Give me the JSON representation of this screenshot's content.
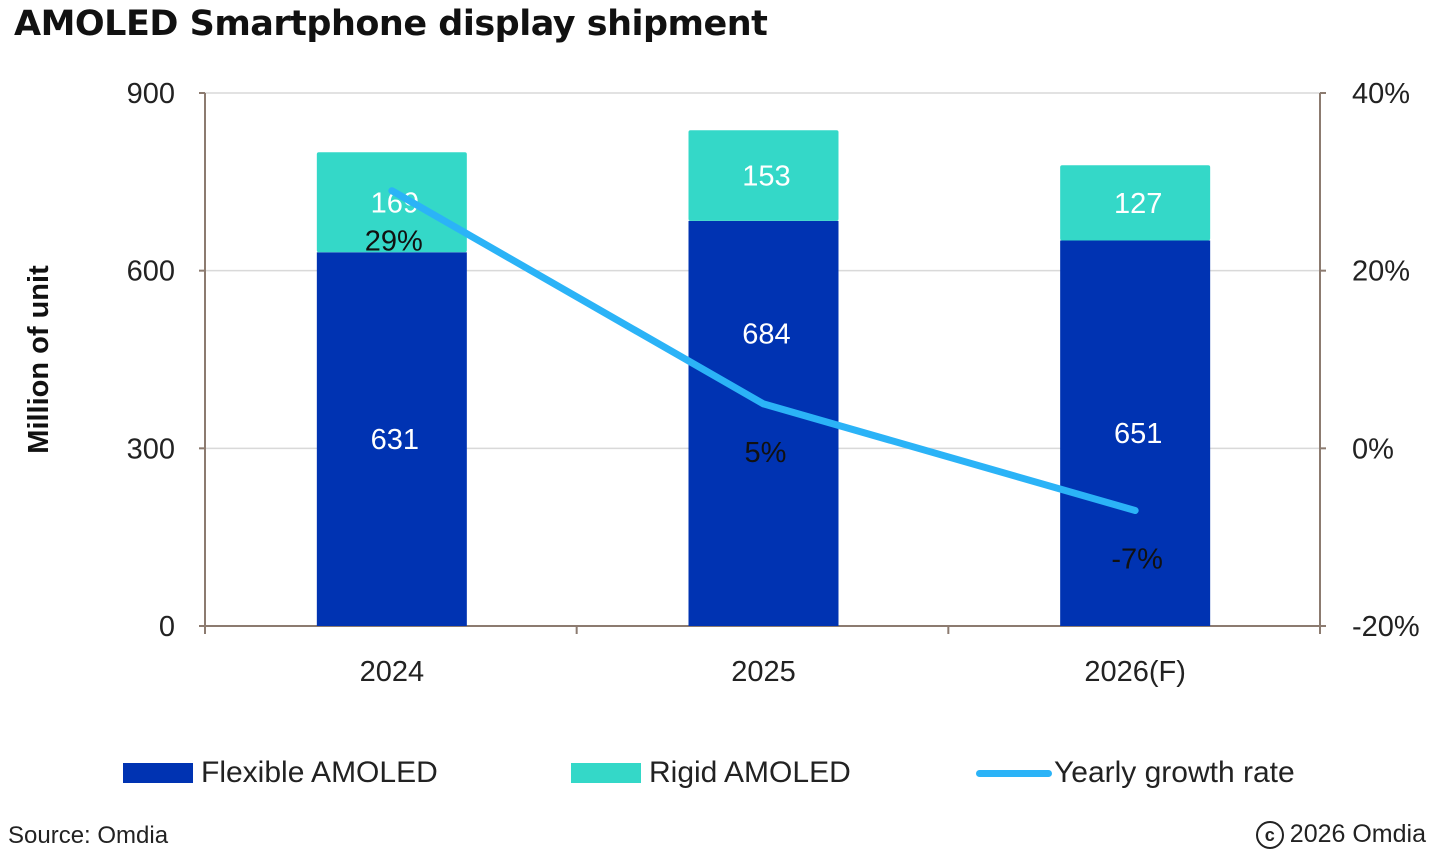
{
  "chart_data": {
    "type": "bar",
    "stacked": true,
    "title": "AMOLED Smartphone display shipment",
    "ylabel": "Million of unit",
    "ylim": [
      0,
      900
    ],
    "yticks": [
      0,
      300,
      600,
      900
    ],
    "y2lim": [
      -20,
      40
    ],
    "y2ticks": [
      "-20%",
      "0%",
      "20%",
      "40%"
    ],
    "y2ticks_values": [
      -20,
      0,
      20,
      40
    ],
    "grid": true,
    "legend_position": "bottom",
    "categories": [
      "2024",
      "2025",
      "2026(F)"
    ],
    "series": [
      {
        "name": "Flexible AMOLED",
        "kind": "bar",
        "values": [
          631,
          684,
          651
        ],
        "color": "#0033B2",
        "labels": [
          "631",
          "684",
          "651"
        ]
      },
      {
        "name": "Rigid AMOLED",
        "kind": "bar",
        "values": [
          169,
          153,
          127
        ],
        "color": "#34D8C8",
        "labels": [
          "169",
          "153",
          "127"
        ]
      },
      {
        "name": "Yearly growth rate",
        "kind": "line",
        "axis": "right",
        "values": [
          29,
          5,
          -7
        ],
        "color": "#2BB3F7",
        "labels": [
          "29%",
          "5%",
          "-7%"
        ]
      }
    ]
  },
  "footer": {
    "source": "Source: Omdia",
    "copyright_symbol": "c",
    "copyright": "2026 Omdia"
  }
}
